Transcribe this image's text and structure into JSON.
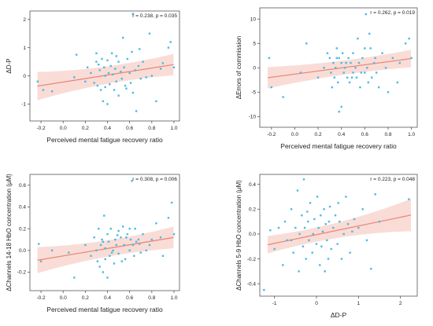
{
  "chart_data": [
    {
      "type": "scatter",
      "annotation": "r = 0.238, p = 0.035",
      "xlabel": "Perceived mental fatigue recovery ratio",
      "ylabel": "ΔD-P",
      "xlim": [
        -0.3,
        1.05
      ],
      "ylim": [
        -1.6,
        2.3
      ],
      "xticks": [
        -0.2,
        0.0,
        0.2,
        0.4,
        0.6,
        0.8,
        1.0
      ],
      "xtick_labels": [
        "-0.2",
        "0.0",
        "0.2",
        "0.4",
        "0.6",
        "0.8",
        "1.0"
      ],
      "yticks": [
        -1,
        0,
        1,
        2
      ],
      "ytick_labels": [
        "-1",
        "0",
        "1",
        "2"
      ],
      "regression": {
        "slope": 0.62,
        "intercept": -0.22,
        "ci_start": 0.5,
        "ci_mid": 0.18,
        "ci_end": 0.38
      },
      "point_color": "#4bbbe3",
      "line_color": "#e8897c",
      "band_color": "#f7c9c0",
      "points": [
        [
          -0.18,
          -0.5
        ],
        [
          -0.23,
          -0.2
        ],
        [
          -0.1,
          -0.55
        ],
        [
          0.1,
          -0.05
        ],
        [
          0.12,
          0.75
        ],
        [
          0.2,
          -0.2
        ],
        [
          0.25,
          0.1
        ],
        [
          0.28,
          -0.25
        ],
        [
          0.3,
          0.8
        ],
        [
          0.31,
          -0.35
        ],
        [
          0.32,
          0.4
        ],
        [
          0.33,
          0.2
        ],
        [
          0.34,
          -0.5
        ],
        [
          0.35,
          0.6
        ],
        [
          0.36,
          -0.9
        ],
        [
          0.37,
          0.3
        ],
        [
          0.38,
          0.0
        ],
        [
          0.38,
          -0.4
        ],
        [
          0.4,
          0.55
        ],
        [
          0.4,
          -1.0
        ],
        [
          0.41,
          0.1
        ],
        [
          0.42,
          -0.3
        ],
        [
          0.43,
          0.35
        ],
        [
          0.45,
          0.05
        ],
        [
          0.46,
          -0.5
        ],
        [
          0.47,
          0.25
        ],
        [
          0.48,
          -0.2
        ],
        [
          0.5,
          0.5
        ],
        [
          0.5,
          -0.7
        ],
        [
          0.52,
          0.15
        ],
        [
          0.53,
          -0.1
        ],
        [
          0.54,
          1.35
        ],
        [
          0.55,
          0.3
        ],
        [
          0.56,
          -0.35
        ],
        [
          0.58,
          0.6
        ],
        [
          0.6,
          0.1
        ],
        [
          0.61,
          -0.25
        ],
        [
          0.62,
          0.85
        ],
        [
          0.63,
          2.2
        ],
        [
          0.63,
          -0.6
        ],
        [
          0.65,
          0.2
        ],
        [
          0.66,
          -1.25
        ],
        [
          0.68,
          0.35
        ],
        [
          0.7,
          -0.1
        ],
        [
          0.72,
          0.5
        ],
        [
          0.75,
          -0.05
        ],
        [
          0.78,
          1.5
        ],
        [
          0.8,
          0.0
        ],
        [
          0.84,
          -0.9
        ],
        [
          0.88,
          0.25
        ],
        [
          0.9,
          0.45
        ],
        [
          0.95,
          1.0
        ],
        [
          0.97,
          1.2
        ],
        [
          1.0,
          0.3
        ],
        [
          0.3,
          0.5
        ],
        [
          0.44,
          0.8
        ],
        [
          0.57,
          -0.45
        ],
        [
          0.22,
          0.3
        ],
        [
          0.48,
          0.7
        ],
        [
          0.69,
          0.95
        ]
      ]
    },
    {
      "type": "scatter",
      "annotation": "r = 0.262, p = 0.019",
      "xlabel": "Perceived mental fatigue recovery ratio",
      "ylabel": "ΔErrors of commission",
      "xlim": [
        -0.3,
        1.05
      ],
      "ylim": [
        -12.2,
        12.3
      ],
      "xticks": [
        -0.2,
        0.0,
        0.2,
        0.4,
        0.6,
        0.8,
        1.0
      ],
      "xtick_labels": [
        "-0.2",
        "0.0",
        "0.2",
        "0.4",
        "0.6",
        "0.8",
        "1.0"
      ],
      "yticks": [
        -10,
        -5,
        0,
        5,
        10
      ],
      "ytick_labels": [
        "-10",
        "-5",
        "0",
        "5",
        "10"
      ],
      "regression": {
        "slope": 3.2,
        "intercept": -1.3,
        "ci_start": 2.2,
        "ci_mid": 0.9,
        "ci_end": 1.8
      },
      "point_color": "#4bbbe3",
      "line_color": "#e8897c",
      "band_color": "#f7c9c0",
      "points": [
        [
          -0.2,
          -4
        ],
        [
          -0.22,
          2
        ],
        [
          -0.1,
          -6
        ],
        [
          0.05,
          -1
        ],
        [
          0.1,
          5
        ],
        [
          0.2,
          -2
        ],
        [
          0.25,
          0
        ],
        [
          0.28,
          3
        ],
        [
          0.3,
          2
        ],
        [
          0.31,
          -1
        ],
        [
          0.32,
          -4
        ],
        [
          0.33,
          1
        ],
        [
          0.34,
          -2
        ],
        [
          0.35,
          0
        ],
        [
          0.36,
          4
        ],
        [
          0.37,
          -3
        ],
        [
          0.38,
          2
        ],
        [
          0.38,
          -9
        ],
        [
          0.4,
          1
        ],
        [
          0.4,
          -8
        ],
        [
          0.41,
          3
        ],
        [
          0.42,
          -1
        ],
        [
          0.43,
          0
        ],
        [
          0.45,
          -2
        ],
        [
          0.46,
          2
        ],
        [
          0.47,
          -3
        ],
        [
          0.48,
          1
        ],
        [
          0.5,
          -1
        ],
        [
          0.5,
          3
        ],
        [
          0.52,
          0
        ],
        [
          0.53,
          -2
        ],
        [
          0.54,
          6
        ],
        [
          0.55,
          1
        ],
        [
          0.56,
          -4
        ],
        [
          0.58,
          2
        ],
        [
          0.6,
          -1
        ],
        [
          0.61,
          11
        ],
        [
          0.62,
          0
        ],
        [
          0.63,
          -3
        ],
        [
          0.64,
          7
        ],
        [
          0.65,
          4
        ],
        [
          0.66,
          -2
        ],
        [
          0.68,
          1
        ],
        [
          0.7,
          -1
        ],
        [
          0.72,
          -4
        ],
        [
          0.75,
          3
        ],
        [
          0.78,
          0
        ],
        [
          0.8,
          -5
        ],
        [
          0.84,
          2
        ],
        [
          0.88,
          -3
        ],
        [
          0.9,
          1
        ],
        [
          0.95,
          5
        ],
        [
          0.98,
          6
        ],
        [
          1.0,
          2
        ],
        [
          0.36,
          2
        ],
        [
          0.44,
          1
        ],
        [
          0.57,
          -1
        ],
        [
          0.6,
          4
        ],
        [
          0.49,
          -2
        ],
        [
          0.69,
          2
        ]
      ]
    },
    {
      "type": "scatter",
      "annotation": "r = 0.308, p = 0.006",
      "xlabel": "Perceived mental fatigue recovery ratio",
      "ylabel": "ΔChannels 14-18 HbO concentration (μM)",
      "xlim": [
        -0.3,
        1.05
      ],
      "ylim": [
        -0.37,
        0.7
      ],
      "xticks": [
        -0.2,
        0.0,
        0.2,
        0.4,
        0.6,
        0.8,
        1.0
      ],
      "xtick_labels": [
        "-0.2",
        "0.0",
        "0.2",
        "0.4",
        "0.6",
        "0.8",
        "1.0"
      ],
      "yticks": [
        -0.2,
        0.0,
        0.2,
        0.4,
        0.6
      ],
      "ytick_labels": [
        "-0.2",
        "0.0",
        "0.2",
        "0.4",
        "0.6"
      ],
      "regression": {
        "slope": 0.17,
        "intercept": -0.05,
        "ci_start": 0.12,
        "ci_mid": 0.04,
        "ci_end": 0.1
      },
      "point_color": "#4bbbe3",
      "line_color": "#e8897c",
      "band_color": "#f7c9c0",
      "points": [
        [
          -0.22,
          0.06
        ],
        [
          -0.2,
          -0.1
        ],
        [
          -0.1,
          0.0
        ],
        [
          0.05,
          -0.02
        ],
        [
          0.1,
          -0.25
        ],
        [
          0.2,
          0.05
        ],
        [
          0.25,
          -0.05
        ],
        [
          0.28,
          0.12
        ],
        [
          0.3,
          0.0
        ],
        [
          0.31,
          -0.1
        ],
        [
          0.32,
          0.2
        ],
        [
          0.33,
          -0.15
        ],
        [
          0.34,
          0.05
        ],
        [
          0.35,
          0.1
        ],
        [
          0.36,
          -0.2
        ],
        [
          0.37,
          0.32
        ],
        [
          0.38,
          0.02
        ],
        [
          0.38,
          -0.08
        ],
        [
          0.4,
          0.15
        ],
        [
          0.4,
          -0.25
        ],
        [
          0.41,
          0.08
        ],
        [
          0.42,
          -0.05
        ],
        [
          0.43,
          0.2
        ],
        [
          0.45,
          0.0
        ],
        [
          0.46,
          -0.12
        ],
        [
          0.47,
          0.1
        ],
        [
          0.48,
          0.05
        ],
        [
          0.5,
          -0.03
        ],
        [
          0.5,
          0.18
        ],
        [
          0.52,
          0.12
        ],
        [
          0.53,
          -0.1
        ],
        [
          0.54,
          0.22
        ],
        [
          0.55,
          0.05
        ],
        [
          0.56,
          -0.08
        ],
        [
          0.58,
          0.15
        ],
        [
          0.6,
          0.0
        ],
        [
          0.61,
          0.1
        ],
        [
          0.62,
          0.64
        ],
        [
          0.63,
          0.05
        ],
        [
          0.64,
          -0.05
        ],
        [
          0.65,
          0.2
        ],
        [
          0.66,
          0.08
        ],
        [
          0.68,
          0.1
        ],
        [
          0.7,
          -0.02
        ],
        [
          0.72,
          0.15
        ],
        [
          0.75,
          0.0
        ],
        [
          0.78,
          0.05
        ],
        [
          0.8,
          0.1
        ],
        [
          0.84,
          0.25
        ],
        [
          0.88,
          0.12
        ],
        [
          0.9,
          -0.05
        ],
        [
          0.95,
          0.3
        ],
        [
          0.98,
          0.44
        ],
        [
          1.0,
          0.15
        ],
        [
          0.36,
          0.08
        ],
        [
          0.44,
          -0.02
        ],
        [
          0.57,
          0.12
        ],
        [
          0.6,
          0.2
        ],
        [
          0.49,
          0.14
        ],
        [
          0.69,
          0.06
        ]
      ]
    },
    {
      "type": "scatter",
      "annotation": "r = 0.223, p = 0.048",
      "xlabel": "ΔD-P",
      "ylabel": "ΔChannels 5-9 HbO concentration (μM)",
      "xlim": [
        -1.35,
        2.4
      ],
      "ylim": [
        -0.5,
        0.48
      ],
      "xticks": [
        -1,
        0,
        1,
        2
      ],
      "xtick_labels": [
        "-1",
        "0",
        "1",
        "2"
      ],
      "yticks": [
        -0.4,
        -0.2,
        0.0,
        0.2,
        0.4
      ],
      "ytick_labels": [
        "-0.4",
        "-0.2",
        "0.0",
        "0.2",
        "0.4"
      ],
      "regression": {
        "slope": 0.07,
        "intercept": -0.005,
        "ci_start": 0.07,
        "ci_mid": 0.025,
        "ci_end": 0.13
      },
      "point_color": "#4bbbe3",
      "line_color": "#e8897c",
      "band_color": "#f7c9c0",
      "points": [
        [
          -1.25,
          -0.45
        ],
        [
          -1.1,
          0.03
        ],
        [
          -1.0,
          -0.12
        ],
        [
          -0.9,
          0.05
        ],
        [
          -0.8,
          -0.25
        ],
        [
          -0.75,
          0.1
        ],
        [
          -0.7,
          -0.05
        ],
        [
          -0.6,
          0.2
        ],
        [
          -0.55,
          -0.15
        ],
        [
          -0.5,
          0.05
        ],
        [
          -0.45,
          0.35
        ],
        [
          -0.42,
          -0.3
        ],
        [
          -0.4,
          0.0
        ],
        [
          -0.35,
          0.15
        ],
        [
          -0.32,
          -0.1
        ],
        [
          -0.3,
          0.44
        ],
        [
          -0.28,
          0.05
        ],
        [
          -0.25,
          -0.2
        ],
        [
          -0.2,
          0.1
        ],
        [
          -0.18,
          -0.05
        ],
        [
          -0.15,
          0.25
        ],
        [
          -0.1,
          -0.15
        ],
        [
          -0.08,
          0.0
        ],
        [
          -0.05,
          0.12
        ],
        [
          0.0,
          -0.08
        ],
        [
          0.02,
          0.3
        ],
        [
          0.05,
          0.05
        ],
        [
          0.08,
          -0.25
        ],
        [
          0.1,
          0.15
        ],
        [
          0.12,
          -0.1
        ],
        [
          0.15,
          0.02
        ],
        [
          0.18,
          0.2
        ],
        [
          0.2,
          -0.3
        ],
        [
          0.22,
          0.08
        ],
        [
          0.25,
          -0.05
        ],
        [
          0.3,
          0.1
        ],
        [
          0.32,
          0.22
        ],
        [
          0.35,
          -0.12
        ],
        [
          0.4,
          0.05
        ],
        [
          0.45,
          0.15
        ],
        [
          0.5,
          -0.08
        ],
        [
          0.55,
          0.1
        ],
        [
          0.6,
          -0.2
        ],
        [
          0.65,
          0.0
        ],
        [
          0.7,
          0.3
        ],
        [
          0.75,
          0.08
        ],
        [
          0.8,
          -0.15
        ],
        [
          0.9,
          0.12
        ],
        [
          1.0,
          0.05
        ],
        [
          1.1,
          0.2
        ],
        [
          1.2,
          -0.05
        ],
        [
          1.3,
          -0.28
        ],
        [
          1.4,
          0.32
        ],
        [
          1.5,
          0.1
        ],
        [
          2.2,
          0.28
        ],
        [
          -0.6,
          -0.05
        ],
        [
          0.28,
          -0.2
        ],
        [
          -0.22,
          0.18
        ],
        [
          0.52,
          0.25
        ],
        [
          0.85,
          0.02
        ]
      ]
    }
  ]
}
